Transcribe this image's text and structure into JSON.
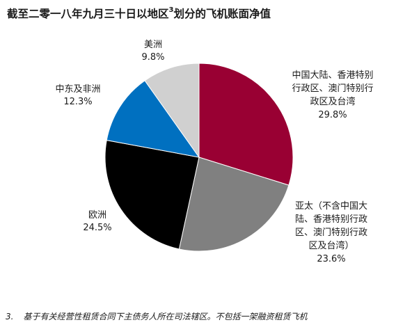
{
  "title": {
    "text": "截至二零一八年九月三十日以地区",
    "superscript": "3",
    "suffix": "划分的飞机账面净值"
  },
  "footnote": {
    "number": "3.",
    "text": "基于有关经营性租赁合同下主债务人所在司法辖区。不包括一架融资租赁飞机"
  },
  "chart_data": {
    "type": "pie",
    "title": "截至二零一八年九月三十日以地区3划分的飞机账面净值",
    "unit": "%",
    "slices": [
      {
        "label_lines": [
          "中国大陆、香港特别",
          "行政区、澳门特别行",
          "政区及台湾"
        ],
        "value": 29.8,
        "value_text": "29.8%",
        "color": "#990033"
      },
      {
        "label_lines": [
          "亚太（不含中国大",
          "陆、香港特别行政",
          "区、澳门特别行政",
          "区及台湾）"
        ],
        "value": 23.6,
        "value_text": "23.6%",
        "color": "#808080"
      },
      {
        "label_lines": [
          "欧洲"
        ],
        "value": 24.5,
        "value_text": "24.5%",
        "color": "#000000"
      },
      {
        "label_lines": [
          "中东及非洲"
        ],
        "value": 12.3,
        "value_text": "12.3%",
        "color": "#0070c0"
      },
      {
        "label_lines": [
          "美洲"
        ],
        "value": 9.8,
        "value_text": "9.8%",
        "color": "#d0d0d0"
      }
    ]
  }
}
